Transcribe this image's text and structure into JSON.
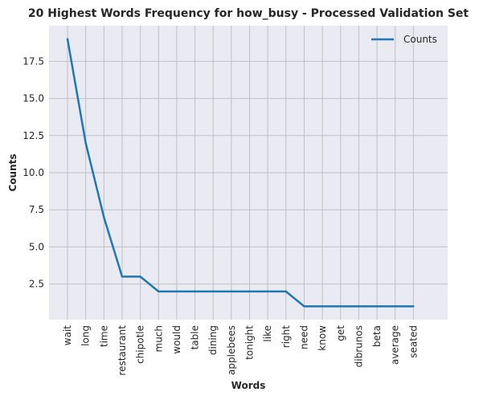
{
  "chart_data": {
    "type": "line",
    "title": "20 Highest Words Frequency for how_busy - Processed Validation Set",
    "xlabel": "Words",
    "ylabel": "Counts",
    "categories": [
      "wait",
      "long",
      "time",
      "restaurant",
      "chipotle",
      "much",
      "would",
      "table",
      "dining",
      "applebees",
      "tonight",
      "like",
      "right",
      "need",
      "know",
      "get",
      "dibrunos",
      "beta",
      "average",
      "seated"
    ],
    "series": [
      {
        "name": "Counts",
        "values": [
          19,
          12,
          7,
          3,
          3,
          2,
          2,
          2,
          2,
          2,
          2,
          2,
          2,
          1,
          1,
          1,
          1,
          1,
          1,
          1
        ]
      }
    ],
    "yticks": [
      2.5,
      5.0,
      7.5,
      10.0,
      12.5,
      15.0,
      17.5
    ],
    "ylim": [
      0.1,
      19.9
    ],
    "grid": true,
    "legend_position": "top-right",
    "colors": {
      "line": "#1f77b4",
      "background": "#eaeaf2",
      "grid": "#c0c0c0"
    }
  }
}
